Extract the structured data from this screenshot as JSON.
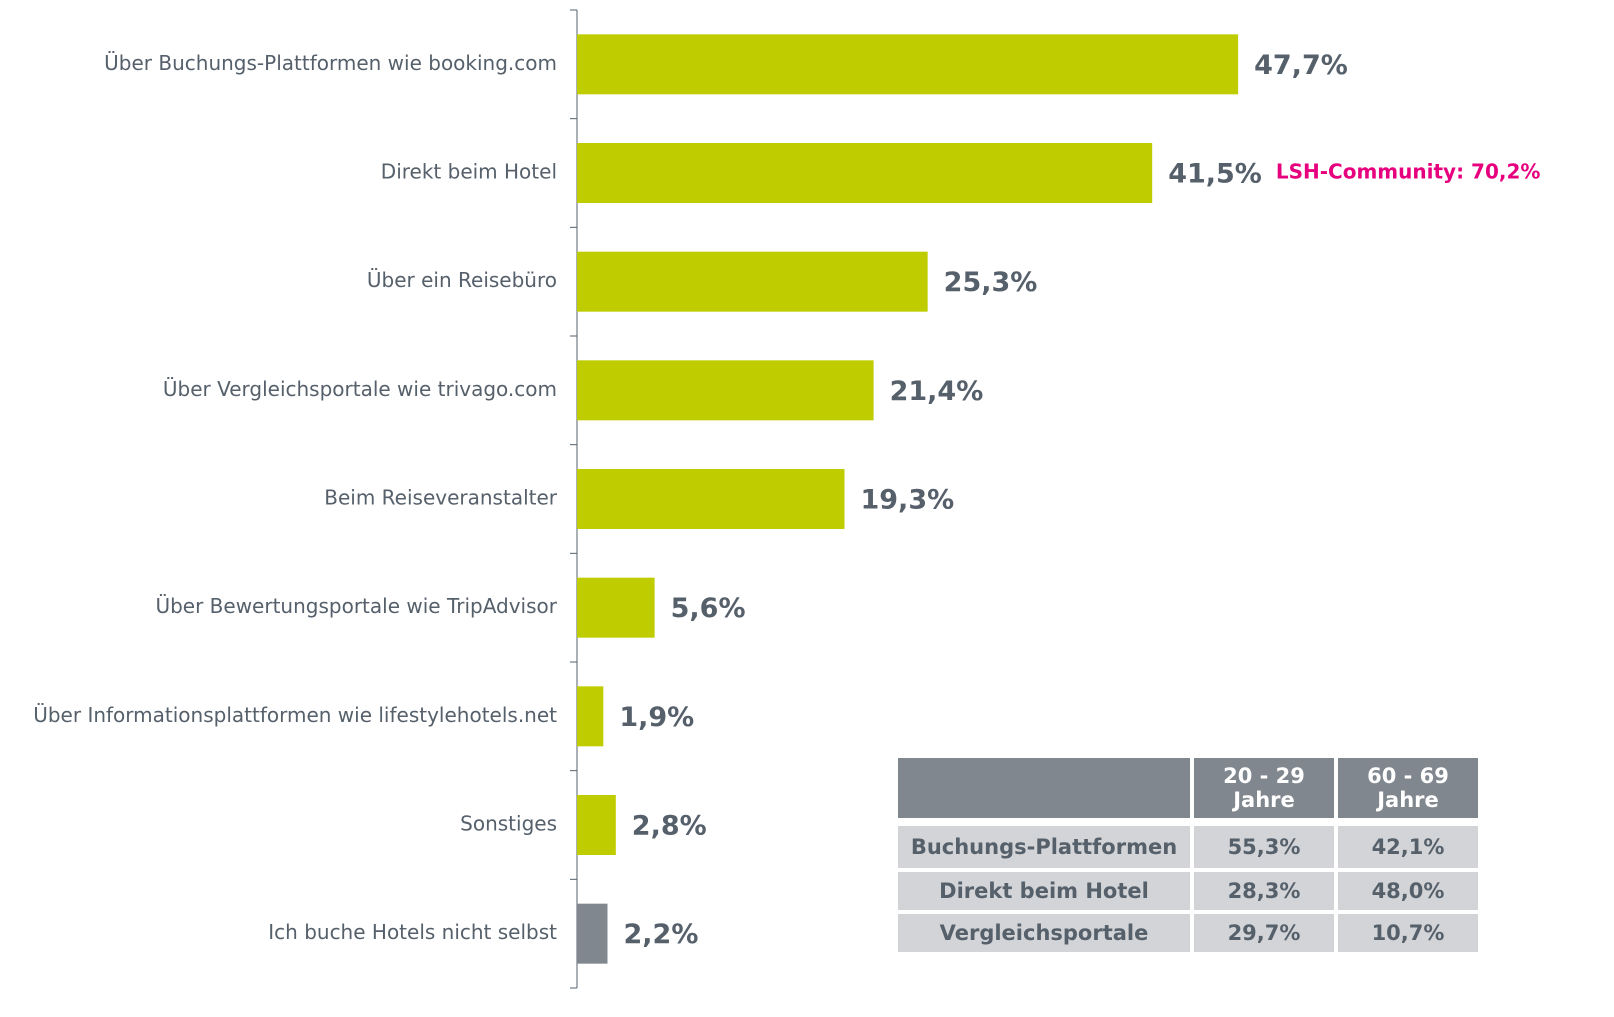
{
  "chart_data": {
    "type": "barh",
    "categories": [
      "Über Buchungs-Plattformen wie booking.com",
      "Direkt beim Hotel",
      "Über ein Reisebüro",
      "Über Vergleichsportale wie trivago.com",
      "Beim Reiseveranstalter",
      "Über Bewertungsportale wie TripAdvisor",
      "Über Informationsplattformen wie lifestylehotels.net",
      "Sonstiges",
      "Ich buche Hotels nicht selbst"
    ],
    "values": [
      47.7,
      41.5,
      25.3,
      21.4,
      19.3,
      5.6,
      1.9,
      2.8,
      2.2
    ],
    "value_labels": [
      "47,7%",
      "41,5%",
      "25,3%",
      "21,4%",
      "19,3%",
      "5,6%",
      "1,9%",
      "2,8%",
      "2,2%"
    ],
    "colors": [
      "#bfcd00",
      "#bfcd00",
      "#bfcd00",
      "#bfcd00",
      "#bfcd00",
      "#bfcd00",
      "#bfcd00",
      "#bfcd00",
      "#80878f"
    ],
    "annotations": [
      {
        "category": 1,
        "text": "LSH-Community: 70,2%"
      }
    ]
  },
  "table": {
    "columns": [
      "20 - 29 Jahre",
      "60 - 69 Jahre"
    ],
    "rows": [
      [
        "Buchungs-Plattformen",
        "55,3%",
        "42,1%"
      ],
      [
        "Direkt beim Hotel",
        "28,3%",
        "48,0%"
      ],
      [
        "Vergleichsportale",
        "29,7%",
        "10,7%"
      ]
    ]
  }
}
